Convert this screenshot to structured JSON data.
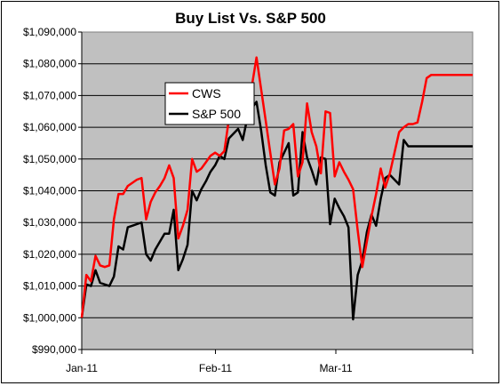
{
  "chart_data": {
    "type": "line",
    "title": "Buy List Vs. S&P 500",
    "xlabel": "",
    "ylabel": "",
    "ylim": [
      990000,
      1090000
    ],
    "yticks": [
      "$990,000",
      "$1,000,000",
      "$1,010,000",
      "$1,020,000",
      "$1,030,000",
      "$1,040,000",
      "$1,050,000",
      "$1,060,000",
      "$1,070,000",
      "$1,080,000",
      "$1,090,000"
    ],
    "xticks": [
      "Jan-11",
      "Feb-11",
      "Mar-11"
    ],
    "grid": "horizontal",
    "legend_position": "upper-left-center",
    "x": [
      0,
      1,
      2,
      3,
      4,
      5,
      6,
      7,
      8,
      9,
      10,
      11,
      12,
      13,
      14,
      15,
      16,
      17,
      18,
      19,
      20,
      21,
      22,
      23,
      24,
      25,
      26,
      27,
      28,
      29,
      30,
      31,
      32,
      33,
      34,
      35,
      36,
      37,
      38,
      39,
      40,
      41,
      42,
      43,
      44,
      45,
      46,
      47,
      48,
      49,
      50,
      51,
      52,
      53,
      54,
      55,
      56,
      57,
      58,
      59,
      60,
      61,
      62,
      63,
      64,
      65,
      66,
      67,
      68,
      69,
      70,
      71,
      72,
      73,
      74,
      75,
      76,
      77,
      78,
      79,
      80,
      81,
      82,
      83,
      84,
      85
    ],
    "series": [
      {
        "name": "CWS",
        "color": "#ff0000",
        "values": [
          1000000,
          1013500,
          1011500,
          1019500,
          1016500,
          1016000,
          1016500,
          1031000,
          1039000,
          1039000,
          1041500,
          1042500,
          1043500,
          1044000,
          1031000,
          1036500,
          1039500,
          1041500,
          1044000,
          1048000,
          1044000,
          1025000,
          1029000,
          1034000,
          1050000,
          1046000,
          1047000,
          1049000,
          1051000,
          1052000,
          1051000,
          1052500,
          1062500,
          1063000,
          1063000,
          1062000,
          1065000,
          1073000,
          1082000,
          1072000,
          1062000,
          1052000,
          1042000,
          1047000,
          1059000,
          1059500,
          1061000,
          1044500,
          1049000,
          1067500,
          1058500,
          1054000,
          1045500,
          1065000,
          1064500,
          1044500,
          1049000,
          1046000,
          1043500,
          1040500,
          1027500,
          1016000,
          1024000,
          1032000,
          1039000,
          1047000,
          1041000,
          1045500,
          1052000,
          1058500,
          1060000,
          1061000,
          1061000,
          1061500,
          1068000,
          1075500,
          1076500,
          1076500,
          1076500,
          1076500,
          1076500,
          1076500,
          1076500,
          1076500,
          1076500,
          1076500
        ]
      },
      {
        "name": "S&P 500",
        "color": "#000000",
        "values": [
          1000000,
          1010500,
          1010000,
          1015000,
          1011000,
          1010500,
          1010000,
          1013000,
          1022500,
          1021500,
          1028500,
          1029000,
          1029500,
          1030000,
          1020000,
          1018000,
          1021500,
          1024000,
          1026500,
          1026500,
          1034000,
          1015000,
          1018500,
          1023000,
          1040000,
          1037000,
          1040500,
          1043000,
          1046000,
          1048000,
          1051000,
          1050000,
          1056500,
          1058000,
          1059500,
          1056000,
          1063000,
          1066000,
          1068000,
          1059000,
          1048000,
          1039500,
          1038500,
          1049000,
          1052000,
          1055000,
          1038500,
          1039500,
          1058500,
          1050500,
          1046500,
          1042000,
          1050500,
          1050000,
          1029500,
          1037500,
          1034500,
          1032000,
          1028500,
          999500,
          1013500,
          1018000,
          1027000,
          1032500,
          1029000,
          1037500,
          1044000,
          1045000,
          1043500,
          1042000,
          1056000,
          1054000,
          1054000,
          1054000,
          1054000,
          1054000,
          1054000,
          1054000,
          1054000,
          1054000,
          1054000,
          1054000,
          1054000,
          1054000,
          1054000,
          1054000
        ]
      }
    ]
  }
}
